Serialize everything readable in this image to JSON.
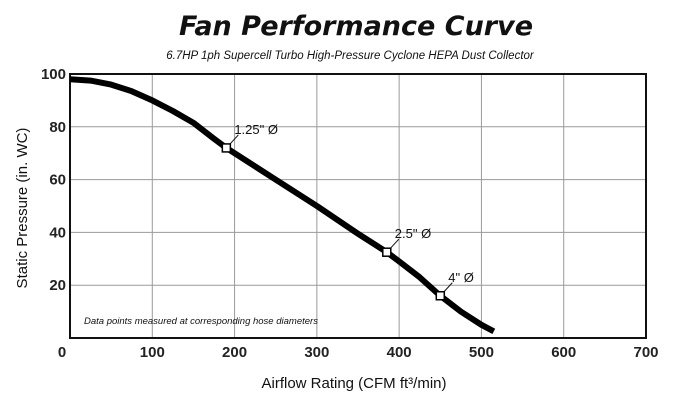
{
  "chart_data": {
    "type": "line",
    "title": "Fan Performance Curve",
    "subtitle": "6.7HP 1ph Supercell Turbo High-Pressure Cyclone HEPA Dust Collector",
    "xlabel": "Airflow Rating (CFM ft³/min)",
    "ylabel": "Static Pressure (in. WC)",
    "xlim": [
      0,
      700
    ],
    "ylim": [
      0,
      100
    ],
    "xticks": [
      "0",
      "100",
      "200",
      "300",
      "400",
      "500",
      "600",
      "700"
    ],
    "yticks": [
      "20",
      "40",
      "60",
      "80",
      "100"
    ],
    "grid": true,
    "legend": "none",
    "series": [
      {
        "x": [
          0,
          25,
          50,
          75,
          100,
          125,
          150,
          175,
          190,
          225,
          250,
          300,
          350,
          385,
          400,
          425,
          450,
          475,
          500,
          515
        ],
        "y": [
          98,
          97.5,
          96,
          93.5,
          90,
          86,
          81.5,
          75.5,
          72,
          65,
          60,
          50,
          39.5,
          32.5,
          29,
          23,
          16,
          10,
          5,
          2.5
        ]
      }
    ],
    "markers": [
      {
        "x": 190,
        "y": 72,
        "label": "1.25\" Ø"
      },
      {
        "x": 385,
        "y": 32.5,
        "label": "2.5\" Ø"
      },
      {
        "x": 450,
        "y": 16,
        "label": "4\" Ø"
      }
    ],
    "annotation": "Data points measured at corresponding hose diameters"
  }
}
